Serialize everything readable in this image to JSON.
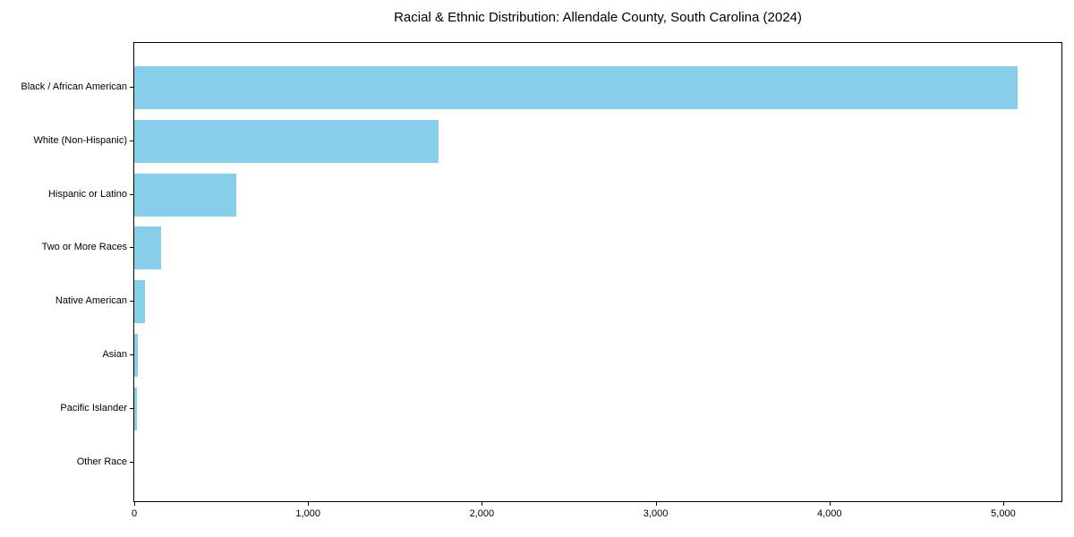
{
  "chart_data": {
    "type": "bar",
    "orientation": "horizontal",
    "title": "Racial & Ethnic Distribution: Allendale County, South Carolina (2024)",
    "categories": [
      "Black / African American",
      "White (Non-Hispanic)",
      "Hispanic or Latino",
      "Two or More Races",
      "Native American",
      "Asian",
      "Pacific Islander",
      "Other Race"
    ],
    "values": [
      5081,
      1750,
      588,
      154,
      62,
      21,
      15,
      0
    ],
    "xlabel": "",
    "ylabel": "",
    "xlim": [
      0,
      5335
    ],
    "x_ticks": [
      0,
      1000,
      2000,
      3000,
      4000,
      5000
    ],
    "x_tick_labels": [
      "0",
      "1,000",
      "2,000",
      "3,000",
      "4,000",
      "5,000"
    ],
    "bar_color": "#87CEEB",
    "axis_color": "#000000",
    "grid": false,
    "legend": null
  }
}
